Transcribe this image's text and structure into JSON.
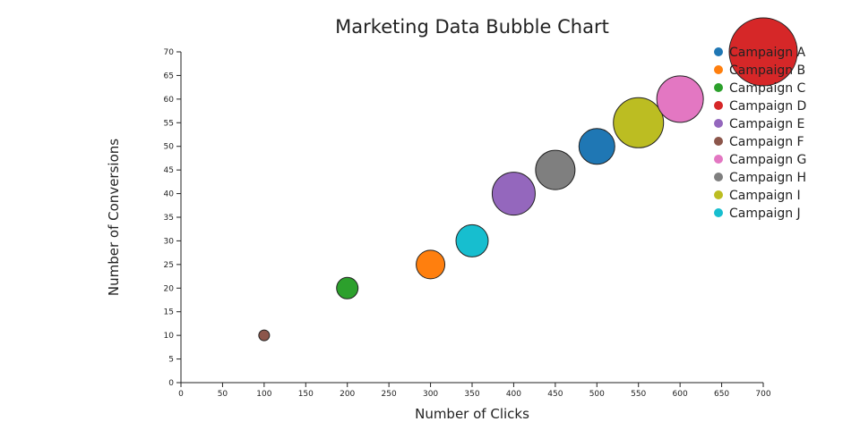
{
  "chart_data": {
    "type": "scatter",
    "title": "Marketing Data Bubble Chart",
    "xlabel": "Number of Clicks",
    "ylabel": "Number of Conversions",
    "xlim": [
      0,
      700
    ],
    "ylim": [
      0,
      70
    ],
    "xticks": [
      0,
      50,
      100,
      150,
      200,
      250,
      300,
      350,
      400,
      450,
      500,
      550,
      600,
      650,
      700
    ],
    "yticks": [
      0,
      5,
      10,
      15,
      20,
      25,
      30,
      35,
      40,
      45,
      50,
      55,
      60,
      65,
      70
    ],
    "legend_position": "top-right",
    "grid": false,
    "series": [
      {
        "name": "Campaign A",
        "color": "#1f77b4",
        "x": 500,
        "y": 50,
        "size": 20
      },
      {
        "name": "Campaign B",
        "color": "#ff7f0e",
        "x": 300,
        "y": 25,
        "size": 16
      },
      {
        "name": "Campaign C",
        "color": "#2ca02c",
        "x": 200,
        "y": 20,
        "size": 12
      },
      {
        "name": "Campaign D",
        "color": "#d62728",
        "x": 700,
        "y": 70,
        "size": 38
      },
      {
        "name": "Campaign E",
        "color": "#9467bd",
        "x": 400,
        "y": 40,
        "size": 24
      },
      {
        "name": "Campaign F",
        "color": "#8c564b",
        "x": 100,
        "y": 10,
        "size": 6
      },
      {
        "name": "Campaign G",
        "color": "#e377c2",
        "x": 600,
        "y": 60,
        "size": 26
      },
      {
        "name": "Campaign H",
        "color": "#7f7f7f",
        "x": 450,
        "y": 45,
        "size": 22
      },
      {
        "name": "Campaign I",
        "color": "#bcbd22",
        "x": 550,
        "y": 55,
        "size": 28
      },
      {
        "name": "Campaign J",
        "color": "#17becf",
        "x": 350,
        "y": 30,
        "size": 18
      }
    ]
  }
}
